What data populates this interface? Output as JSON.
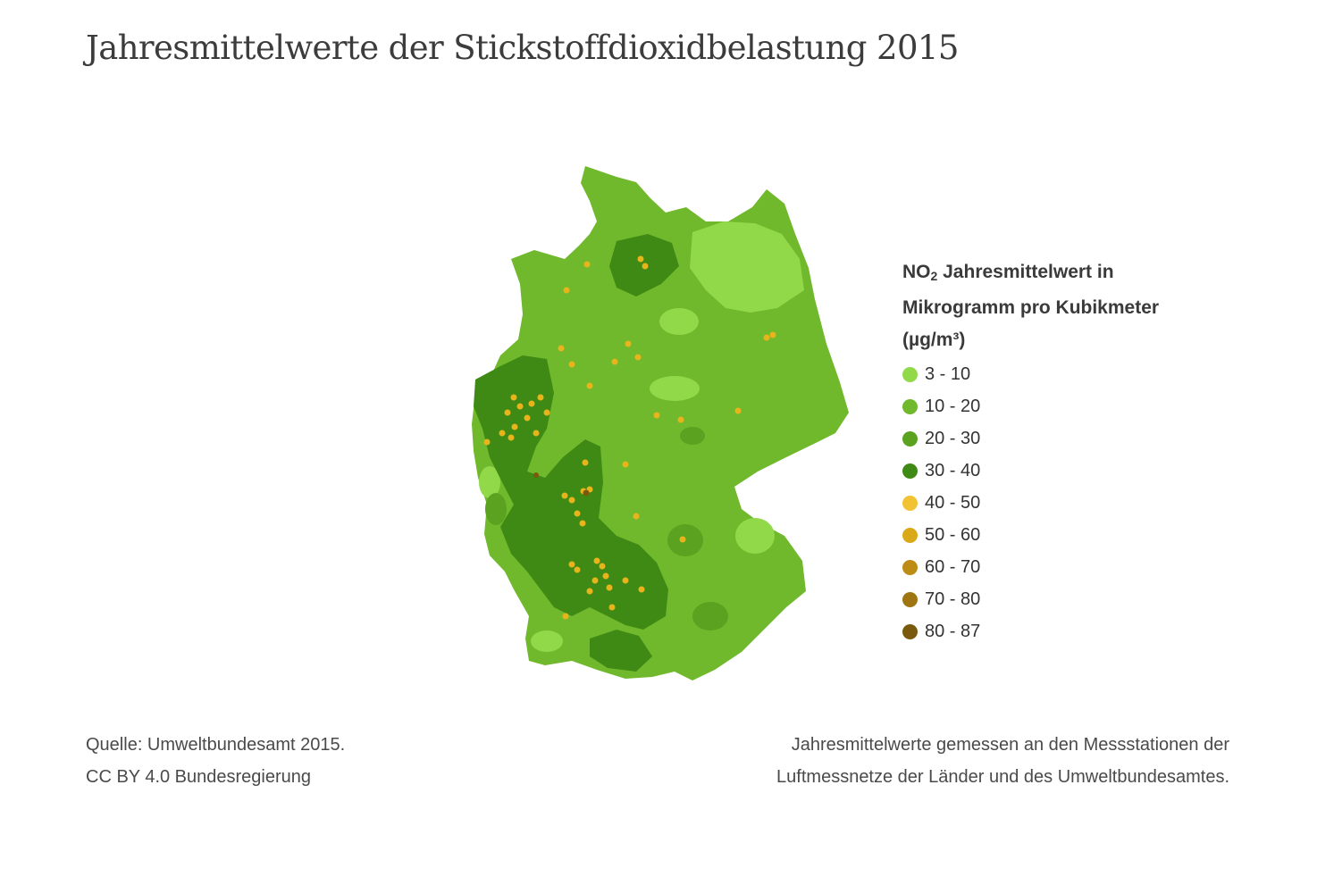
{
  "title": "Jahresmittelwerte der Stickstoffdioxidbelastung 2015",
  "legend": {
    "title_pre": "NO",
    "title_sub": "2",
    "title_rest": " Jahresmittelwert in",
    "title_line2": "Mikrogramm pro Kubikmeter",
    "title_line3": "(µg/m³)",
    "items": [
      {
        "label": "3 - 10",
        "color": "#92d94a"
      },
      {
        "label": "10 - 20",
        "color": "#70b82c"
      },
      {
        "label": "20 - 30",
        "color": "#5aa21f"
      },
      {
        "label": "30 - 40",
        "color": "#3f8a14"
      },
      {
        "label": "40 - 50",
        "color": "#f1c232"
      },
      {
        "label": "50 - 60",
        "color": "#d9a91a"
      },
      {
        "label": "60 - 70",
        "color": "#bc8c14"
      },
      {
        "label": "70 - 80",
        "color": "#9e7510"
      },
      {
        "label": "80 - 87",
        "color": "#7a590c"
      }
    ]
  },
  "source": {
    "line1": "Quelle: Umweltbundesamt 2015.",
    "line2": "CC BY 4.0 Bundesregierung"
  },
  "note": {
    "line1": "Jahresmittelwerte gemessen an den Messstationen der",
    "line2": "Luftmessnetze der Länder und des Umweltbundesamtes."
  }
}
